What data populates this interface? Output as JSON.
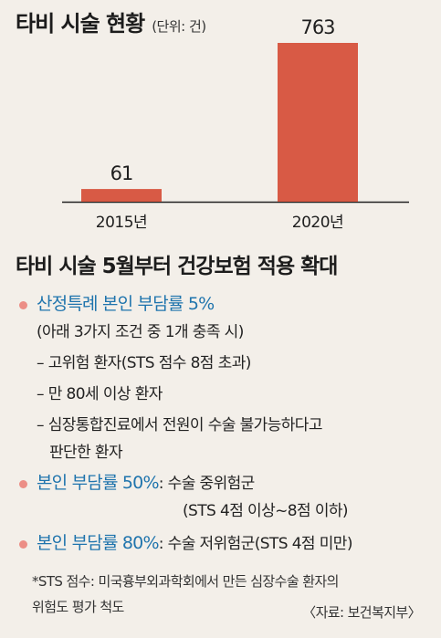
{
  "chart_data": {
    "type": "bar",
    "title": "타비 시술 현황",
    "unit": "(단위: 건)",
    "categories": [
      "2015년",
      "2020년"
    ],
    "values": [
      61,
      763
    ],
    "colors": {
      "bar": "#d85a45",
      "baseline": "#222222"
    }
  },
  "policy": {
    "title": "타비 시술 5월부터 건강보험 적용 확대",
    "items": [
      {
        "highlight": "산정특례 본인 부담률 5%",
        "condition": "(아래 3가지 조건 중 1개 충족 시)",
        "subitems": [
          "– 고위험 환자(STS 점수 8점 초과)",
          "– 만 80세 이상 환자",
          "– 심장통합진료에서 전원이 수술 불가능하다고",
          "판단한 환자"
        ]
      },
      {
        "highlight": "본인 부담률 50%",
        "desc": ": 수술 중위험군",
        "desc2": "(STS 4점 이상~8점 이하)"
      },
      {
        "highlight": "본인 부담률 80%",
        "desc": ": 수술 저위험군(STS 4점 미만)"
      }
    ],
    "footnote_1": "*STS 점수: 미국흉부외과학회에서 만든 심장수술 환자의",
    "footnote_2": "위험도 평가 척도",
    "source": "〈자료: 보건복지부〉"
  }
}
